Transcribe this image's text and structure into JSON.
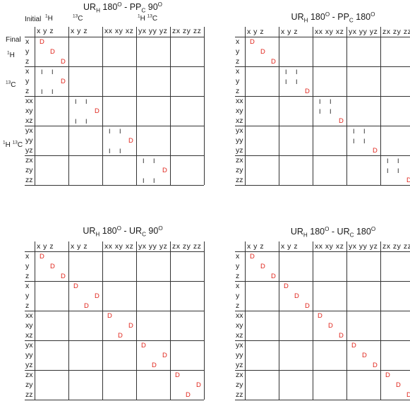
{
  "panels": [
    {
      "title_main": "UR",
      "title_sub": "H",
      "title_mid": " 180",
      "title_deg": "O",
      "title_sep": " - PP",
      "title_sub2": "C",
      "title_end": " 90",
      "title_deg2": "O",
      "row_labels": [
        "x",
        "y",
        "z",
        "x",
        "y",
        "z",
        "xx",
        "xy",
        "xz",
        "yx",
        "yy",
        "yz",
        "zx",
        "zy",
        "zz"
      ],
      "col_groups": [
        "x y z",
        "x y z",
        "xx xy xz",
        "yx yy yz",
        "zx zy zz"
      ],
      "marks": [
        [
          0,
          0,
          "D"
        ],
        [
          1,
          1,
          "D"
        ],
        [
          2,
          2,
          "D"
        ],
        [
          3,
          0,
          "I"
        ],
        [
          3,
          1,
          "I"
        ],
        [
          4,
          2,
          "D"
        ],
        [
          5,
          0,
          "I"
        ],
        [
          5,
          1,
          "I"
        ],
        [
          6,
          3,
          "I"
        ],
        [
          6,
          4,
          "I"
        ],
        [
          7,
          5,
          "D"
        ],
        [
          8,
          3,
          "I"
        ],
        [
          8,
          4,
          "I"
        ],
        [
          9,
          6,
          "I"
        ],
        [
          9,
          7,
          "I"
        ],
        [
          10,
          8,
          "D"
        ],
        [
          11,
          6,
          "I"
        ],
        [
          11,
          7,
          "I"
        ],
        [
          12,
          9,
          "I"
        ],
        [
          12,
          10,
          "I"
        ],
        [
          13,
          11,
          "D"
        ],
        [
          14,
          9,
          "I"
        ],
        [
          14,
          10,
          "I"
        ]
      ]
    },
    {
      "title_main": "UR",
      "title_sub": "H",
      "title_mid": " 180",
      "title_deg": "O",
      "title_sep": " - PP",
      "title_sub2": "C",
      "title_end": " 180",
      "title_deg2": "O",
      "row_labels": [
        "x",
        "y",
        "z",
        "x",
        "y",
        "z",
        "xx",
        "xy",
        "xz",
        "yx",
        "yy",
        "yz",
        "zx",
        "zy",
        "zz"
      ],
      "col_groups": [
        "x y z",
        "x y z",
        "xx xy xz",
        "yx yy yz",
        "zx zy zz"
      ],
      "marks": [
        [
          0,
          0,
          "D"
        ],
        [
          1,
          1,
          "D"
        ],
        [
          2,
          2,
          "D"
        ],
        [
          3,
          3,
          "I"
        ],
        [
          3,
          4,
          "I"
        ],
        [
          4,
          3,
          "I"
        ],
        [
          4,
          4,
          "I"
        ],
        [
          5,
          5,
          "D"
        ],
        [
          6,
          6,
          "I"
        ],
        [
          6,
          7,
          "I"
        ],
        [
          7,
          6,
          "I"
        ],
        [
          7,
          7,
          "I"
        ],
        [
          8,
          8,
          "D"
        ],
        [
          9,
          9,
          "I"
        ],
        [
          9,
          10,
          "I"
        ],
        [
          10,
          9,
          "I"
        ],
        [
          10,
          10,
          "I"
        ],
        [
          11,
          11,
          "D"
        ],
        [
          12,
          12,
          "I"
        ],
        [
          12,
          13,
          "I"
        ],
        [
          13,
          12,
          "I"
        ],
        [
          13,
          13,
          "I"
        ],
        [
          14,
          14,
          "D"
        ]
      ]
    },
    {
      "title_main": "UR",
      "title_sub": "H",
      "title_mid": " 180",
      "title_deg": "O",
      "title_sep": " - UR",
      "title_sub2": "C",
      "title_end": " 90",
      "title_deg2": "O",
      "row_labels": [
        "x",
        "y",
        "z",
        "x",
        "y",
        "z",
        "xx",
        "xy",
        "xz",
        "yx",
        "yy",
        "yz",
        "zx",
        "zy",
        "zz"
      ],
      "col_groups": [
        "x y z",
        "x y z",
        "xx xy xz",
        "yx yy yz",
        "zx zy zz"
      ],
      "marks": [
        [
          0,
          0,
          "D"
        ],
        [
          1,
          1,
          "D"
        ],
        [
          2,
          2,
          "D"
        ],
        [
          3,
          3,
          "D"
        ],
        [
          4,
          5,
          "D"
        ],
        [
          5,
          4,
          "D"
        ],
        [
          6,
          6,
          "D"
        ],
        [
          7,
          8,
          "D"
        ],
        [
          8,
          7,
          "D"
        ],
        [
          9,
          9,
          "D"
        ],
        [
          10,
          11,
          "D"
        ],
        [
          11,
          10,
          "D"
        ],
        [
          12,
          12,
          "D"
        ],
        [
          13,
          14,
          "D"
        ],
        [
          14,
          13,
          "D"
        ]
      ]
    },
    {
      "title_main": "UR",
      "title_sub": "H",
      "title_mid": " 180",
      "title_deg": "O",
      "title_sep": " - UR",
      "title_sub2": "C",
      "title_end": " 180",
      "title_deg2": "O",
      "row_labels": [
        "x",
        "y",
        "z",
        "x",
        "y",
        "z",
        "xx",
        "xy",
        "xz",
        "yx",
        "yy",
        "yz",
        "zx",
        "zy",
        "zz"
      ],
      "col_groups": [
        "x y z",
        "x y z",
        "xx xy xz",
        "yx yy yz",
        "zx zy zz"
      ],
      "marks": [
        [
          0,
          0,
          "D"
        ],
        [
          1,
          1,
          "D"
        ],
        [
          2,
          2,
          "D"
        ],
        [
          3,
          3,
          "D"
        ],
        [
          4,
          4,
          "D"
        ],
        [
          5,
          5,
          "D"
        ],
        [
          6,
          6,
          "D"
        ],
        [
          7,
          7,
          "D"
        ],
        [
          8,
          8,
          "D"
        ],
        [
          9,
          9,
          "D"
        ],
        [
          10,
          10,
          "D"
        ],
        [
          11,
          11,
          "D"
        ],
        [
          12,
          12,
          "D"
        ],
        [
          13,
          13,
          "D"
        ],
        [
          14,
          14,
          "D"
        ]
      ]
    }
  ],
  "side_labels": {
    "initial": "Initial",
    "final": "Final",
    "h_sup": "1",
    "h": "H",
    "c_sup": "13",
    "c": "C",
    "hc_h_sup": "1",
    "hc_h": "H",
    "hc_c_sup": "13",
    "hc_c": "C"
  }
}
